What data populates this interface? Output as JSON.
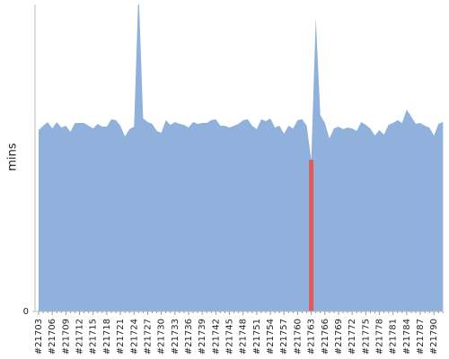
{
  "chart_data": {
    "type": "area",
    "y_label": "mins",
    "categories": [
      "#21703",
      null,
      null,
      "#21706",
      null,
      null,
      "#21709",
      null,
      null,
      "#21712",
      null,
      null,
      "#21715",
      null,
      null,
      "#21718",
      null,
      null,
      "#21721",
      null,
      null,
      "#21724",
      null,
      null,
      "#21727",
      null,
      null,
      "#21730",
      null,
      null,
      "#21733",
      null,
      null,
      "#21736",
      null,
      null,
      "#21739",
      null,
      null,
      "#21742",
      null,
      null,
      "#21745",
      null,
      null,
      "#21748",
      null,
      null,
      "#21751",
      null,
      null,
      "#21754",
      null,
      null,
      "#21757",
      null,
      null,
      "#21760",
      null,
      null,
      "#21763",
      null,
      null,
      "#21766",
      null,
      null,
      "#21769",
      null,
      null,
      "#21772",
      null,
      null,
      "#21775",
      null,
      null,
      "#21778",
      null,
      null,
      "#21781",
      null,
      null,
      "#21784",
      null,
      null,
      "#21787",
      null,
      null,
      "#21790",
      null,
      null
    ],
    "values": [
      59.1,
      60.5,
      61.7,
      59.6,
      61.7,
      59.9,
      60.5,
      58.5,
      61.4,
      61.4,
      61.4,
      60.5,
      59.6,
      61.1,
      60.2,
      60.2,
      62.6,
      62.3,
      60.5,
      57.0,
      59.4,
      60.2,
      105,
      62.9,
      61.7,
      61.1,
      58.8,
      58.2,
      62.3,
      60.8,
      61.7,
      61.1,
      60.8,
      59.9,
      61.7,
      61.1,
      61.4,
      61.4,
      62.3,
      62.6,
      60.5,
      60.5,
      59.9,
      60.5,
      61.1,
      62.3,
      62.6,
      60.5,
      59.4,
      62.6,
      62.0,
      62.9,
      59.9,
      60.5,
      57.9,
      60.5,
      59.6,
      62.3,
      62.6,
      60.5,
      49.4,
      95.6,
      64.0,
      61.4,
      56.4,
      59.6,
      60.2,
      59.4,
      59.9,
      59.6,
      58.8,
      61.7,
      60.8,
      59.6,
      57.3,
      59.1,
      57.6,
      60.8,
      61.4,
      62.3,
      61.4,
      65.8,
      63.5,
      61.1,
      61.4,
      60.5,
      59.9,
      57.3,
      61.1,
      61.7
    ],
    "color": "#8fb1dc",
    "highlight_index": 60,
    "highlight_color": "#e05a5a",
    "ylim": [
      0,
      100
    ],
    "yticks": [
      0
    ]
  }
}
